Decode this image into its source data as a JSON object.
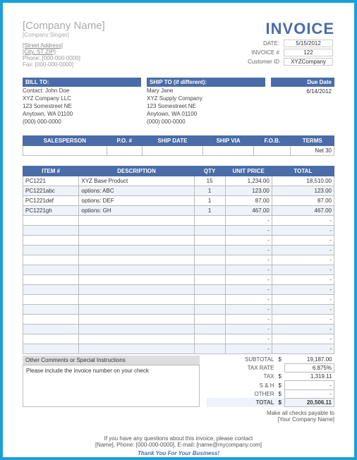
{
  "colors": {
    "accent": "#4a6ca8",
    "border_outer": "#1a9fd9"
  },
  "company": {
    "name": "[Company Name]",
    "slogan": "[Company Slogan]",
    "street": "[Street Address]",
    "city": "[City, ST  ZIP]",
    "phone": "Phone: [000-000-0000]",
    "fax": "Fax: [000-000-0000]"
  },
  "title": "INVOICE",
  "meta": {
    "date_label": "DATE:",
    "date": "5/15/2012",
    "invoice_no_label": "INVOICE #",
    "invoice_no": "122",
    "customer_id_label": "Customer ID",
    "customer_id": "XYZCompany"
  },
  "bill_to": {
    "header": "BILL TO:",
    "lines": [
      "Contact: John Doe",
      "XYZ Company LLC",
      "123 Somestreet NE",
      "Anytown, WA 01100",
      "(000) 000-0000"
    ]
  },
  "ship_to": {
    "header": "SHIP TO (if different):",
    "lines": [
      "Mary Jane",
      "XYZ Supply Company",
      "123 Somestreet NE",
      "Anytown, WA 01100",
      "(000) 000-0000"
    ]
  },
  "due": {
    "header": "Due Date",
    "value": "6/14/2012"
  },
  "order_info": {
    "headers": [
      "SALESPERSON",
      "P.O. #",
      "SHIP DATE",
      "SHIP VIA",
      "F.O.B.",
      "TERMS"
    ],
    "row": [
      "",
      "",
      "",
      "",
      "",
      "Net 30"
    ]
  },
  "items": {
    "headers": [
      "ITEM #",
      "DESCRIPTION",
      "QTY",
      "UNIT PRICE",
      "TOTAL"
    ],
    "rows": [
      {
        "item": "PC1221",
        "desc": "XYZ Base Product",
        "qty": "15",
        "unit": "1,234.00",
        "total": "18,510.00"
      },
      {
        "item": "PC1221abc",
        "desc": "options: ABC",
        "qty": "1",
        "unit": "123.00",
        "total": "123.00"
      },
      {
        "item": "PC1221def",
        "desc": "options: DEF",
        "qty": "1",
        "unit": "87.00",
        "total": "87.00"
      },
      {
        "item": "PC1221gh",
        "desc": "options: GH",
        "qty": "1",
        "unit": "467.00",
        "total": "467.00"
      }
    ],
    "empty_rows": 14
  },
  "comments": {
    "header": "Other Comments or Special Instructions",
    "body": "Please include the invoice number on your check"
  },
  "totals": {
    "subtotal_label": "SUBTOTAL",
    "subtotal": "19,187.00",
    "taxrate_label": "TAX RATE",
    "taxrate": "6.875%",
    "tax_label": "TAX",
    "tax": "1,319.11",
    "sh_label": "S & H",
    "sh": "-",
    "other_label": "OTHER",
    "other": "-",
    "total_label": "TOTAL",
    "total": "20,506.11",
    "currency": "$"
  },
  "payable": {
    "line1": "Make all checks payable to",
    "line2": "[Your Company Name]"
  },
  "footer": {
    "line1": "If you have any questions about this invoice, please contact",
    "line2": "[Name], Phone: [000-000-0000], E-mail: [name@mycompany.com]",
    "thanks": "Thank You For Your Business!"
  }
}
